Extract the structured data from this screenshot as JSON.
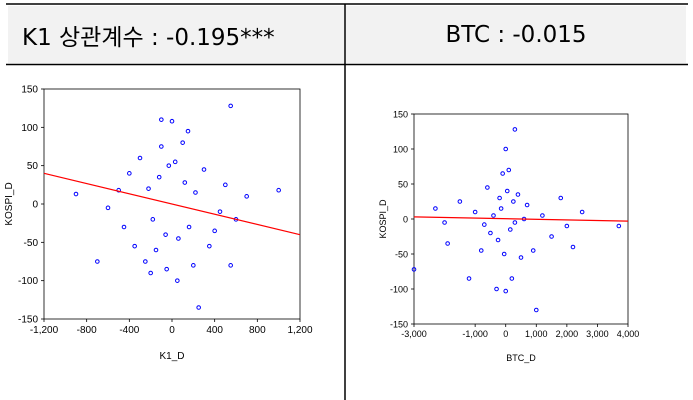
{
  "headers": {
    "left": "K1 상관계수 : -0.195***",
    "right": "BTC : -0.015"
  },
  "chart_data": [
    {
      "type": "scatter",
      "title": "",
      "xlabel": "K1_D",
      "ylabel": "KOSPI_D",
      "xlim": [
        -1200,
        1200
      ],
      "ylim": [
        -150,
        150
      ],
      "x_ticks": [
        "-1,200",
        "-800",
        "-400",
        "0",
        "400",
        "800",
        "1,200"
      ],
      "y_ticks": [
        "150",
        "100",
        "50",
        "0",
        "-50",
        "-100",
        "-150"
      ],
      "marker_color": "#0000ff",
      "line_color": "#ff0000",
      "fit_line": {
        "x": [
          -1200,
          1200
        ],
        "y": [
          40,
          -40
        ]
      },
      "points": [
        {
          "x": 550,
          "y": 128
        },
        {
          "x": -100,
          "y": 110
        },
        {
          "x": 0,
          "y": 108
        },
        {
          "x": 150,
          "y": 95
        },
        {
          "x": -900,
          "y": 13
        },
        {
          "x": -700,
          "y": -75
        },
        {
          "x": -600,
          "y": -5
        },
        {
          "x": -500,
          "y": 18
        },
        {
          "x": -450,
          "y": -30
        },
        {
          "x": -400,
          "y": 40
        },
        {
          "x": -350,
          "y": -55
        },
        {
          "x": -300,
          "y": 60
        },
        {
          "x": -250,
          "y": -75
        },
        {
          "x": -200,
          "y": -90
        },
        {
          "x": -150,
          "y": -60
        },
        {
          "x": -100,
          "y": 75
        },
        {
          "x": -50,
          "y": -85
        },
        {
          "x": 50,
          "y": -100
        },
        {
          "x": 100,
          "y": 80
        },
        {
          "x": 200,
          "y": -80
        },
        {
          "x": 250,
          "y": -135
        },
        {
          "x": 300,
          "y": 45
        },
        {
          "x": 350,
          "y": -55
        },
        {
          "x": 400,
          "y": -35
        },
        {
          "x": 450,
          "y": -10
        },
        {
          "x": 500,
          "y": 25
        },
        {
          "x": 550,
          "y": -80
        },
        {
          "x": 600,
          "y": -20
        },
        {
          "x": 700,
          "y": 10
        },
        {
          "x": 1000,
          "y": 18
        },
        {
          "x": -220,
          "y": 20
        },
        {
          "x": 220,
          "y": 15
        },
        {
          "x": -180,
          "y": -20
        },
        {
          "x": 160,
          "y": -30
        },
        {
          "x": -120,
          "y": 35
        },
        {
          "x": 120,
          "y": 28
        },
        {
          "x": -60,
          "y": -40
        },
        {
          "x": 60,
          "y": -45
        },
        {
          "x": -30,
          "y": 50
        },
        {
          "x": 30,
          "y": 55
        }
      ]
    },
    {
      "type": "scatter",
      "title": "",
      "xlabel": "BTC_D",
      "ylabel": "KOSPI_D",
      "xlim": [
        -3000,
        4000
      ],
      "ylim": [
        -150,
        150
      ],
      "x_ticks": [
        "-3,000",
        "-1,000",
        "0",
        "1,000",
        "2,000",
        "3,000",
        "4,000"
      ],
      "x_tick_values": [
        -3000,
        -1000,
        0,
        1000,
        2000,
        3000,
        4000
      ],
      "y_ticks": [
        "150",
        "100",
        "50",
        "0",
        "-50",
        "-100",
        "-150"
      ],
      "marker_color": "#0000ff",
      "line_color": "#ff0000",
      "fit_line": {
        "x": [
          -3000,
          4000
        ],
        "y": [
          3,
          -3
        ]
      },
      "points": [
        {
          "x": 300,
          "y": 128
        },
        {
          "x": 0,
          "y": 100
        },
        {
          "x": 100,
          "y": 70
        },
        {
          "x": -100,
          "y": 65
        },
        {
          "x": -3000,
          "y": -72
        },
        {
          "x": -2300,
          "y": 15
        },
        {
          "x": -2000,
          "y": -5
        },
        {
          "x": -1900,
          "y": -35
        },
        {
          "x": -1500,
          "y": 25
        },
        {
          "x": -1200,
          "y": -85
        },
        {
          "x": -1000,
          "y": 10
        },
        {
          "x": -800,
          "y": -45
        },
        {
          "x": -600,
          "y": 45
        },
        {
          "x": -500,
          "y": -20
        },
        {
          "x": -300,
          "y": -100
        },
        {
          "x": -200,
          "y": 30
        },
        {
          "x": 0,
          "y": -103
        },
        {
          "x": 200,
          "y": -85
        },
        {
          "x": 400,
          "y": 35
        },
        {
          "x": 500,
          "y": -55
        },
        {
          "x": 700,
          "y": 20
        },
        {
          "x": 900,
          "y": -45
        },
        {
          "x": 1000,
          "y": -130
        },
        {
          "x": 1200,
          "y": 5
        },
        {
          "x": 1500,
          "y": -25
        },
        {
          "x": 1800,
          "y": 30
        },
        {
          "x": 2000,
          "y": -10
        },
        {
          "x": 2200,
          "y": -40
        },
        {
          "x": 2500,
          "y": 10
        },
        {
          "x": 3700,
          "y": -10
        },
        {
          "x": -400,
          "y": 5
        },
        {
          "x": 300,
          "y": -5
        },
        {
          "x": -150,
          "y": 15
        },
        {
          "x": 150,
          "y": -15
        },
        {
          "x": -250,
          "y": -30
        },
        {
          "x": 250,
          "y": 25
        },
        {
          "x": 50,
          "y": 40
        },
        {
          "x": -50,
          "y": -50
        },
        {
          "x": 600,
          "y": 0
        },
        {
          "x": -700,
          "y": -8
        }
      ]
    }
  ]
}
